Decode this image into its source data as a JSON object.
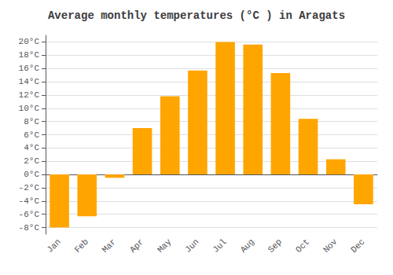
{
  "chart_data": {
    "type": "bar",
    "title": "Average monthly temperatures (°C ) in Aragats",
    "categories": [
      "Jan",
      "Feb",
      "Mar",
      "Apr",
      "May",
      "Jun",
      "Jul",
      "Aug",
      "Sep",
      "Oct",
      "Nov",
      "Dec"
    ],
    "values": [
      -8,
      -6.3,
      -0.5,
      7,
      11.8,
      15.7,
      20,
      19.6,
      15.3,
      8.4,
      2.3,
      -4.5
    ],
    "color": "#FFA500",
    "ylim": [
      -9,
      21
    ],
    "yticks": [
      {
        "value": -8,
        "label": "-8°C"
      },
      {
        "value": -6,
        "label": "-6°C"
      },
      {
        "value": -4,
        "label": "-4°C"
      },
      {
        "value": -2,
        "label": "-2°C"
      },
      {
        "value": 0,
        "label": "0°C"
      },
      {
        "value": 2,
        "label": "2°C"
      },
      {
        "value": 4,
        "label": "4°C"
      },
      {
        "value": 6,
        "label": "6°C"
      },
      {
        "value": 8,
        "label": "8°C"
      },
      {
        "value": 10,
        "label": "10°C"
      },
      {
        "value": 12,
        "label": "12°C"
      },
      {
        "value": 14,
        "label": "14°C"
      },
      {
        "value": 16,
        "label": "16°C"
      },
      {
        "value": 18,
        "label": "18°C"
      },
      {
        "value": 20,
        "label": "20°C"
      }
    ],
    "grid": true
  }
}
